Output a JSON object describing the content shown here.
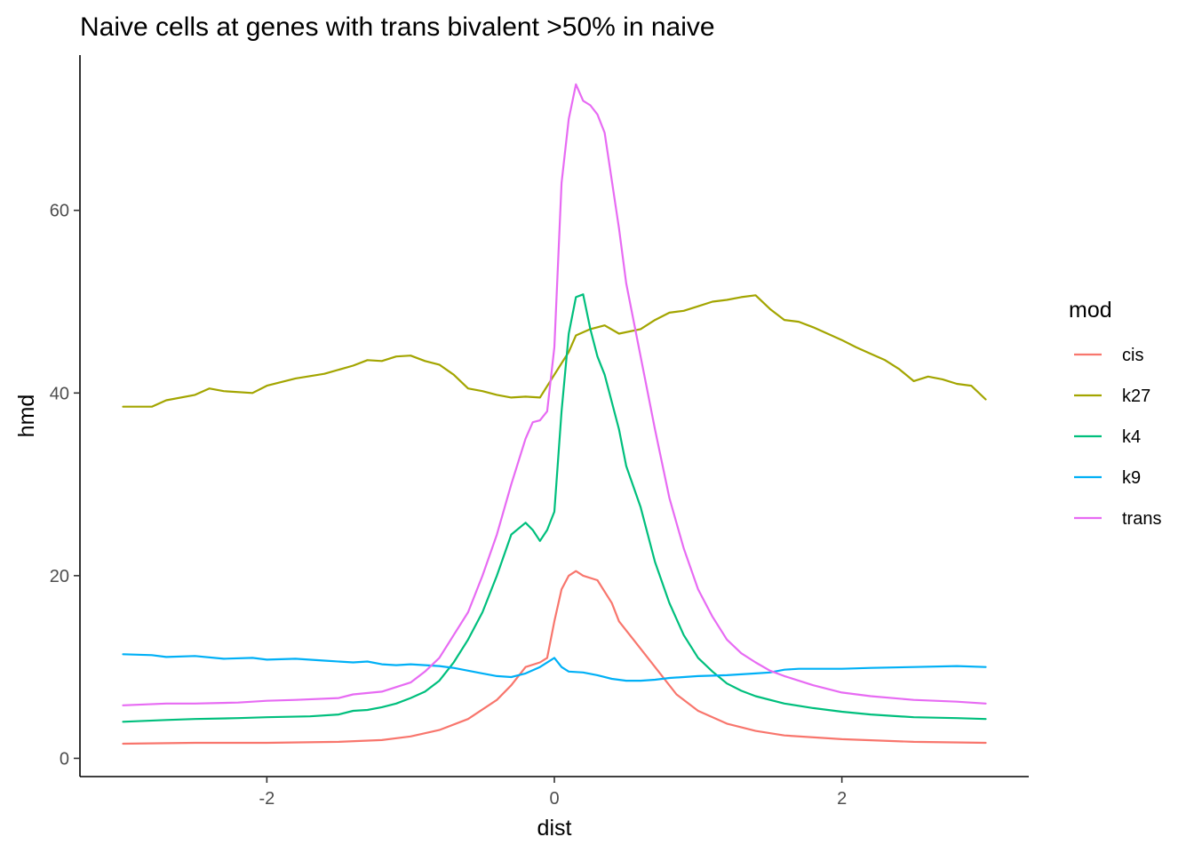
{
  "chart_data": {
    "type": "line",
    "title": "Naive cells at genes with trans bivalent >50% in naive",
    "xlabel": "dist",
    "ylabel": "hmd",
    "xlim": [
      -3.3,
      3.3
    ],
    "ylim": [
      -2,
      77
    ],
    "x_ticks": [
      -2,
      0,
      2
    ],
    "x_tick_labels": [
      "-2",
      "0",
      "2"
    ],
    "y_ticks": [
      0,
      20,
      40,
      60
    ],
    "y_tick_labels": [
      "0",
      "20",
      "40",
      "60"
    ],
    "grid": false,
    "legend": {
      "title": "mod",
      "placement": "right"
    },
    "series": [
      {
        "name": "cis",
        "color": "#F8766D",
        "points": [
          [
            -3.0,
            1.6
          ],
          [
            -2.5,
            1.7
          ],
          [
            -2.0,
            1.7
          ],
          [
            -1.5,
            1.8
          ],
          [
            -1.2,
            2.0
          ],
          [
            -1.0,
            2.4
          ],
          [
            -0.8,
            3.1
          ],
          [
            -0.6,
            4.3
          ],
          [
            -0.4,
            6.4
          ],
          [
            -0.3,
            8.0
          ],
          [
            -0.2,
            10.0
          ],
          [
            -0.1,
            10.5
          ],
          [
            -0.05,
            11.0
          ],
          [
            0.0,
            15.0
          ],
          [
            0.05,
            18.5
          ],
          [
            0.1,
            20.0
          ],
          [
            0.15,
            20.5
          ],
          [
            0.2,
            20.0
          ],
          [
            0.3,
            19.5
          ],
          [
            0.4,
            17.0
          ],
          [
            0.45,
            15.0
          ],
          [
            0.55,
            13.0
          ],
          [
            0.7,
            10.0
          ],
          [
            0.85,
            7.0
          ],
          [
            1.0,
            5.2
          ],
          [
            1.2,
            3.8
          ],
          [
            1.4,
            3.0
          ],
          [
            1.6,
            2.5
          ],
          [
            2.0,
            2.1
          ],
          [
            2.5,
            1.8
          ],
          [
            3.0,
            1.7
          ]
        ]
      },
      {
        "name": "k27",
        "color": "#A3A500",
        "points": [
          [
            -3.0,
            38.5
          ],
          [
            -2.8,
            38.5
          ],
          [
            -2.7,
            39.2
          ],
          [
            -2.5,
            39.8
          ],
          [
            -2.4,
            40.5
          ],
          [
            -2.3,
            40.2
          ],
          [
            -2.1,
            40.0
          ],
          [
            -2.0,
            40.8
          ],
          [
            -1.8,
            41.6
          ],
          [
            -1.6,
            42.1
          ],
          [
            -1.4,
            43.0
          ],
          [
            -1.3,
            43.6
          ],
          [
            -1.2,
            43.5
          ],
          [
            -1.1,
            44.0
          ],
          [
            -1.0,
            44.1
          ],
          [
            -0.9,
            43.5
          ],
          [
            -0.8,
            43.1
          ],
          [
            -0.7,
            42.0
          ],
          [
            -0.6,
            40.5
          ],
          [
            -0.5,
            40.2
          ],
          [
            -0.4,
            39.8
          ],
          [
            -0.3,
            39.5
          ],
          [
            -0.2,
            39.6
          ],
          [
            -0.1,
            39.5
          ],
          [
            0.0,
            42.0
          ],
          [
            0.1,
            44.5
          ],
          [
            0.15,
            46.3
          ],
          [
            0.25,
            47.0
          ],
          [
            0.35,
            47.4
          ],
          [
            0.45,
            46.5
          ],
          [
            0.6,
            47.0
          ],
          [
            0.7,
            48.0
          ],
          [
            0.8,
            48.8
          ],
          [
            0.9,
            49.0
          ],
          [
            1.0,
            49.5
          ],
          [
            1.1,
            50.0
          ],
          [
            1.2,
            50.2
          ],
          [
            1.3,
            50.5
          ],
          [
            1.4,
            50.7
          ],
          [
            1.5,
            49.2
          ],
          [
            1.6,
            48.0
          ],
          [
            1.7,
            47.8
          ],
          [
            1.8,
            47.2
          ],
          [
            1.9,
            46.5
          ],
          [
            2.0,
            45.8
          ],
          [
            2.1,
            45.0
          ],
          [
            2.2,
            44.3
          ],
          [
            2.3,
            43.6
          ],
          [
            2.4,
            42.6
          ],
          [
            2.5,
            41.3
          ],
          [
            2.6,
            41.8
          ],
          [
            2.7,
            41.5
          ],
          [
            2.8,
            41.0
          ],
          [
            2.9,
            40.8
          ],
          [
            3.0,
            39.3
          ]
        ]
      },
      {
        "name": "k4",
        "color": "#00BF7D",
        "points": [
          [
            -3.0,
            4.0
          ],
          [
            -2.7,
            4.2
          ],
          [
            -2.5,
            4.3
          ],
          [
            -2.2,
            4.4
          ],
          [
            -2.0,
            4.5
          ],
          [
            -1.7,
            4.6
          ],
          [
            -1.5,
            4.8
          ],
          [
            -1.4,
            5.2
          ],
          [
            -1.3,
            5.3
          ],
          [
            -1.2,
            5.6
          ],
          [
            -1.1,
            6.0
          ],
          [
            -1.0,
            6.6
          ],
          [
            -0.9,
            7.3
          ],
          [
            -0.8,
            8.5
          ],
          [
            -0.7,
            10.5
          ],
          [
            -0.6,
            13.0
          ],
          [
            -0.5,
            16.0
          ],
          [
            -0.4,
            20.0
          ],
          [
            -0.3,
            24.5
          ],
          [
            -0.2,
            25.8
          ],
          [
            -0.15,
            25.0
          ],
          [
            -0.1,
            23.8
          ],
          [
            -0.05,
            25.0
          ],
          [
            0.0,
            27.0
          ],
          [
            0.05,
            38.0
          ],
          [
            0.1,
            46.5
          ],
          [
            0.15,
            50.5
          ],
          [
            0.2,
            50.8
          ],
          [
            0.25,
            47.0
          ],
          [
            0.3,
            44.0
          ],
          [
            0.35,
            42.0
          ],
          [
            0.45,
            36.0
          ],
          [
            0.5,
            32.0
          ],
          [
            0.6,
            27.5
          ],
          [
            0.7,
            21.5
          ],
          [
            0.8,
            17.0
          ],
          [
            0.9,
            13.5
          ],
          [
            1.0,
            11.0
          ],
          [
            1.1,
            9.5
          ],
          [
            1.2,
            8.2
          ],
          [
            1.3,
            7.4
          ],
          [
            1.4,
            6.8
          ],
          [
            1.6,
            6.0
          ],
          [
            1.8,
            5.5
          ],
          [
            2.0,
            5.1
          ],
          [
            2.2,
            4.8
          ],
          [
            2.5,
            4.5
          ],
          [
            2.8,
            4.4
          ],
          [
            3.0,
            4.3
          ]
        ]
      },
      {
        "name": "k9",
        "color": "#00B0F6",
        "points": [
          [
            -3.0,
            11.4
          ],
          [
            -2.8,
            11.3
          ],
          [
            -2.7,
            11.1
          ],
          [
            -2.5,
            11.2
          ],
          [
            -2.3,
            10.9
          ],
          [
            -2.1,
            11.0
          ],
          [
            -2.0,
            10.8
          ],
          [
            -1.8,
            10.9
          ],
          [
            -1.6,
            10.7
          ],
          [
            -1.4,
            10.5
          ],
          [
            -1.3,
            10.6
          ],
          [
            -1.2,
            10.3
          ],
          [
            -1.1,
            10.2
          ],
          [
            -1.0,
            10.3
          ],
          [
            -0.9,
            10.2
          ],
          [
            -0.8,
            10.1
          ],
          [
            -0.7,
            9.9
          ],
          [
            -0.6,
            9.6
          ],
          [
            -0.5,
            9.3
          ],
          [
            -0.4,
            9.0
          ],
          [
            -0.3,
            8.9
          ],
          [
            -0.2,
            9.3
          ],
          [
            -0.1,
            10.0
          ],
          [
            0.0,
            11.0
          ],
          [
            0.05,
            10.0
          ],
          [
            0.1,
            9.5
          ],
          [
            0.2,
            9.4
          ],
          [
            0.3,
            9.1
          ],
          [
            0.4,
            8.7
          ],
          [
            0.5,
            8.5
          ],
          [
            0.6,
            8.5
          ],
          [
            0.7,
            8.6
          ],
          [
            0.8,
            8.8
          ],
          [
            0.9,
            8.9
          ],
          [
            1.0,
            9.0
          ],
          [
            1.2,
            9.1
          ],
          [
            1.4,
            9.3
          ],
          [
            1.5,
            9.4
          ],
          [
            1.6,
            9.7
          ],
          [
            1.7,
            9.8
          ],
          [
            1.8,
            9.8
          ],
          [
            2.0,
            9.8
          ],
          [
            2.2,
            9.9
          ],
          [
            2.5,
            10.0
          ],
          [
            2.8,
            10.1
          ],
          [
            3.0,
            10.0
          ]
        ]
      },
      {
        "name": "trans",
        "color": "#E76BF3",
        "points": [
          [
            -3.0,
            5.8
          ],
          [
            -2.7,
            6.0
          ],
          [
            -2.5,
            6.0
          ],
          [
            -2.2,
            6.1
          ],
          [
            -2.0,
            6.3
          ],
          [
            -1.8,
            6.4
          ],
          [
            -1.5,
            6.6
          ],
          [
            -1.4,
            7.0
          ],
          [
            -1.2,
            7.3
          ],
          [
            -1.0,
            8.3
          ],
          [
            -0.9,
            9.5
          ],
          [
            -0.8,
            11.0
          ],
          [
            -0.7,
            13.5
          ],
          [
            -0.6,
            16.0
          ],
          [
            -0.5,
            20.0
          ],
          [
            -0.4,
            24.5
          ],
          [
            -0.3,
            30.0
          ],
          [
            -0.2,
            35.0
          ],
          [
            -0.15,
            36.8
          ],
          [
            -0.1,
            37.0
          ],
          [
            -0.05,
            38.0
          ],
          [
            0.0,
            45.0
          ],
          [
            0.05,
            63.0
          ],
          [
            0.1,
            70.0
          ],
          [
            0.15,
            73.8
          ],
          [
            0.2,
            72.0
          ],
          [
            0.25,
            71.5
          ],
          [
            0.3,
            70.5
          ],
          [
            0.35,
            68.5
          ],
          [
            0.45,
            58.0
          ],
          [
            0.5,
            52.0
          ],
          [
            0.6,
            44.0
          ],
          [
            0.7,
            36.0
          ],
          [
            0.8,
            28.5
          ],
          [
            0.9,
            23.0
          ],
          [
            1.0,
            18.5
          ],
          [
            1.1,
            15.5
          ],
          [
            1.2,
            13.0
          ],
          [
            1.3,
            11.5
          ],
          [
            1.4,
            10.5
          ],
          [
            1.5,
            9.6
          ],
          [
            1.6,
            9.0
          ],
          [
            1.8,
            8.0
          ],
          [
            2.0,
            7.2
          ],
          [
            2.2,
            6.8
          ],
          [
            2.5,
            6.4
          ],
          [
            2.8,
            6.2
          ],
          [
            3.0,
            6.0
          ]
        ]
      }
    ]
  }
}
